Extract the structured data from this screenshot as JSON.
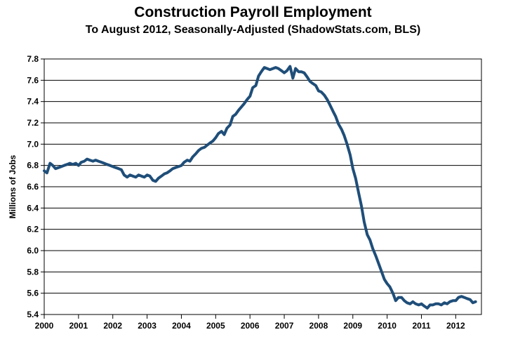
{
  "chart_data": {
    "type": "line",
    "title": "Construction Payroll Employment",
    "subtitle": "To August 2012, Seasonally-Adjusted (ShadowStats.com, BLS)",
    "xlabel": "",
    "ylabel": "Millions of Jobs",
    "xlim": [
      2000,
      2012.75
    ],
    "ylim": [
      5.4,
      7.8
    ],
    "yticks": [
      "5.4",
      "5.6",
      "5.8",
      "6.0",
      "6.2",
      "6.4",
      "6.6",
      "6.8",
      "7.0",
      "7.2",
      "7.4",
      "7.6",
      "7.8"
    ],
    "xticks": [
      "2000",
      "2001",
      "2002",
      "2003",
      "2004",
      "2005",
      "2006",
      "2007",
      "2008",
      "2009",
      "2010",
      "2011",
      "2012"
    ],
    "grid": true,
    "line_color": "#1f4e79",
    "series": [
      {
        "x": [
          2000.0,
          2000.08,
          2000.17,
          2000.25,
          2000.33,
          2000.42,
          2000.5,
          2000.58,
          2000.67,
          2000.75,
          2000.83,
          2000.92,
          2001.0,
          2001.08,
          2001.17,
          2001.25,
          2001.33,
          2001.42,
          2001.5,
          2001.58,
          2001.67,
          2001.75,
          2001.83,
          2001.92,
          2002.0,
          2002.08,
          2002.17,
          2002.25,
          2002.33,
          2002.42,
          2002.5,
          2002.58,
          2002.67,
          2002.75,
          2002.83,
          2002.92,
          2003.0,
          2003.08,
          2003.17,
          2003.25,
          2003.33,
          2003.42,
          2003.5,
          2003.58,
          2003.67,
          2003.75,
          2003.83,
          2003.92,
          2004.0,
          2004.08,
          2004.17,
          2004.25,
          2004.33,
          2004.42,
          2004.5,
          2004.58,
          2004.67,
          2004.75,
          2004.83,
          2004.92,
          2005.0,
          2005.08,
          2005.17,
          2005.25,
          2005.33,
          2005.42,
          2005.5,
          2005.58,
          2005.67,
          2005.75,
          2005.83,
          2005.92,
          2006.0,
          2006.08,
          2006.17,
          2006.25,
          2006.33,
          2006.42,
          2006.5,
          2006.58,
          2006.67,
          2006.75,
          2006.83,
          2006.92,
          2007.0,
          2007.08,
          2007.17,
          2007.25,
          2007.33,
          2007.42,
          2007.5,
          2007.58,
          2007.67,
          2007.75,
          2007.83,
          2007.92,
          2008.0,
          2008.08,
          2008.17,
          2008.25,
          2008.33,
          2008.42,
          2008.5,
          2008.58,
          2008.67,
          2008.75,
          2008.83,
          2008.92,
          2009.0,
          2009.08,
          2009.17,
          2009.25,
          2009.33,
          2009.42,
          2009.5,
          2009.58,
          2009.67,
          2009.75,
          2009.83,
          2009.92,
          2010.0,
          2010.08,
          2010.17,
          2010.25,
          2010.33,
          2010.42,
          2010.5,
          2010.58,
          2010.67,
          2010.75,
          2010.83,
          2010.92,
          2011.0,
          2011.08,
          2011.17,
          2011.25,
          2011.33,
          2011.42,
          2011.5,
          2011.58,
          2011.67,
          2011.75,
          2011.83,
          2011.92,
          2012.0,
          2012.08,
          2012.17,
          2012.25,
          2012.33,
          2012.42,
          2012.5,
          2012.58
        ],
        "values": [
          6.75,
          6.73,
          6.82,
          6.8,
          6.77,
          6.78,
          6.79,
          6.8,
          6.81,
          6.82,
          6.81,
          6.82,
          6.8,
          6.83,
          6.84,
          6.86,
          6.85,
          6.84,
          6.85,
          6.84,
          6.83,
          6.82,
          6.81,
          6.8,
          6.79,
          6.78,
          6.77,
          6.76,
          6.71,
          6.69,
          6.71,
          6.7,
          6.69,
          6.71,
          6.7,
          6.69,
          6.71,
          6.7,
          6.66,
          6.65,
          6.68,
          6.7,
          6.72,
          6.73,
          6.75,
          6.77,
          6.78,
          6.79,
          6.8,
          6.83,
          6.85,
          6.84,
          6.88,
          6.91,
          6.94,
          6.96,
          6.97,
          6.99,
          7.01,
          7.03,
          7.06,
          7.1,
          7.12,
          7.09,
          7.15,
          7.18,
          7.26,
          7.28,
          7.32,
          7.35,
          7.38,
          7.42,
          7.45,
          7.53,
          7.55,
          7.64,
          7.68,
          7.72,
          7.71,
          7.7,
          7.71,
          7.72,
          7.71,
          7.69,
          7.67,
          7.69,
          7.73,
          7.62,
          7.71,
          7.68,
          7.68,
          7.67,
          7.63,
          7.59,
          7.57,
          7.55,
          7.5,
          7.49,
          7.46,
          7.42,
          7.37,
          7.31,
          7.26,
          7.19,
          7.14,
          7.08,
          7.0,
          6.9,
          6.77,
          6.68,
          6.54,
          6.42,
          6.27,
          6.15,
          6.1,
          6.02,
          5.95,
          5.88,
          5.81,
          5.73,
          5.69,
          5.66,
          5.6,
          5.53,
          5.56,
          5.56,
          5.53,
          5.51,
          5.5,
          5.52,
          5.5,
          5.49,
          5.5,
          5.48,
          5.46,
          5.49,
          5.49,
          5.5,
          5.5,
          5.49,
          5.51,
          5.5,
          5.52,
          5.53,
          5.53,
          5.56,
          5.57,
          5.56,
          5.55,
          5.54,
          5.51,
          5.52
        ]
      }
    ]
  }
}
